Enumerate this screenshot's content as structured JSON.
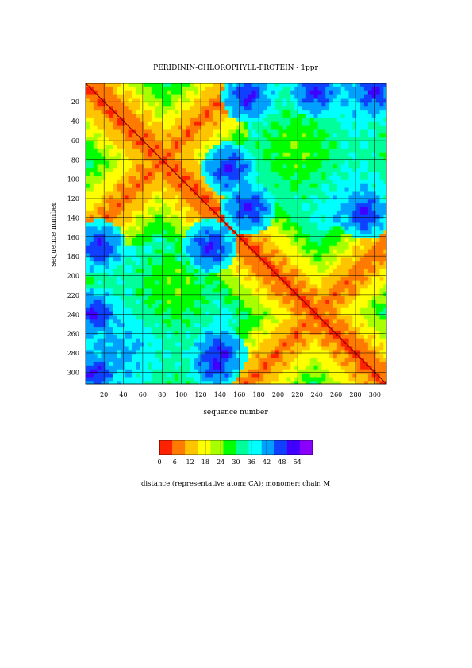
{
  "chart_data": {
    "type": "heatmap",
    "title": "PERIDININ-CHLOROPHYLL-PROTEIN - 1ppr",
    "xlabel": "sequence number",
    "ylabel": "sequence number",
    "x_ticks": [
      20,
      40,
      60,
      80,
      100,
      120,
      140,
      160,
      180,
      200,
      220,
      240,
      260,
      280,
      300
    ],
    "y_ticks": [
      20,
      40,
      60,
      80,
      100,
      120,
      140,
      160,
      180,
      200,
      220,
      240,
      260,
      280,
      300
    ],
    "xlim": [
      1,
      312
    ],
    "ylim": [
      1,
      312
    ],
    "y_axis_inverted": true,
    "grid": true,
    "colorbar": {
      "label": "distance (representative atom: CA); monomer: chain M",
      "ticks": [
        0,
        6,
        12,
        18,
        24,
        30,
        36,
        42,
        48,
        54
      ],
      "range": [
        0,
        60
      ],
      "colors": [
        "#ff2200",
        "#ff7a00",
        "#ffc400",
        "#ffff00",
        "#a8ff00",
        "#00ff00",
        "#00ff9a",
        "#00ffff",
        "#00a0ff",
        "#1040ff",
        "#4000ff",
        "#8a00ff"
      ]
    },
    "diagonal_crossings": [
      80,
      240
    ],
    "blue_regions_approx": [
      {
        "x": 300,
        "y": 10
      },
      {
        "x": 10,
        "y": 300
      },
      {
        "x": 15,
        "y": 170
      },
      {
        "x": 170,
        "y": 15
      },
      {
        "x": 130,
        "y": 170
      },
      {
        "x": 170,
        "y": 130
      },
      {
        "x": 290,
        "y": 135
      },
      {
        "x": 135,
        "y": 290
      },
      {
        "x": 140,
        "y": 280
      },
      {
        "x": 10,
        "y": 240
      },
      {
        "x": 240,
        "y": 10
      },
      {
        "x": 150,
        "y": 90
      }
    ]
  }
}
